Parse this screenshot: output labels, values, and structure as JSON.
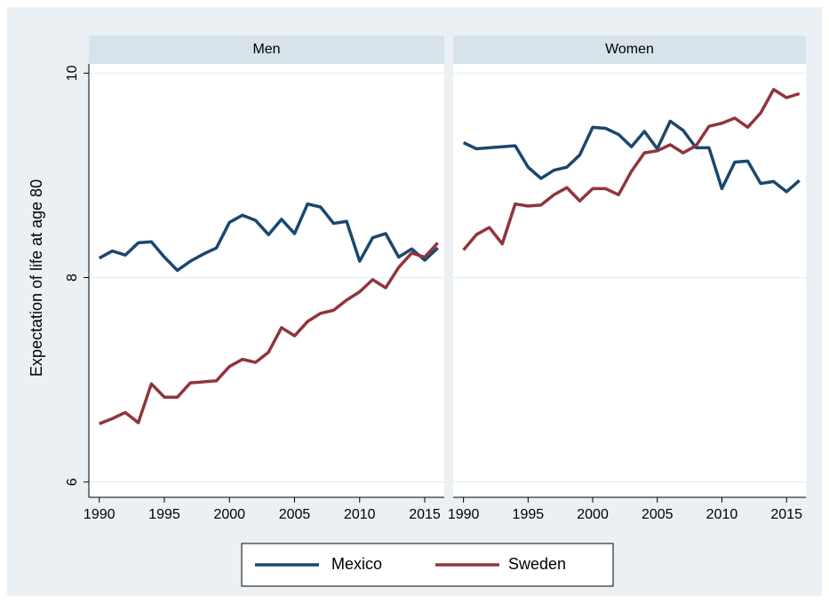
{
  "chart_data": {
    "type": "line",
    "ylabel": "Expectation of life at age 80",
    "x": [
      1990,
      1991,
      1992,
      1993,
      1994,
      1995,
      1996,
      1997,
      1998,
      1999,
      2000,
      2001,
      2002,
      2003,
      2004,
      2005,
      2006,
      2007,
      2008,
      2009,
      2010,
      2011,
      2012,
      2013,
      2014,
      2015,
      2016
    ],
    "xlim": [
      1989.2,
      2016.5
    ],
    "xticks": [
      1990,
      1995,
      2000,
      2005,
      2010,
      2015
    ],
    "ylim": [
      5.85,
      10.09
    ],
    "yticks": [
      6,
      8,
      10
    ],
    "grid": true,
    "legend": "bottom",
    "series": [
      {
        "name": "Mexico",
        "color": "#1a476f"
      },
      {
        "name": "Sweden",
        "color": "#90353b"
      }
    ],
    "panels": [
      {
        "title": "Men",
        "series": [
          {
            "values": [
              8.19,
              8.26,
              8.22,
              8.34,
              8.35,
              8.2,
              8.07,
              8.16,
              8.23,
              8.29,
              8.54,
              8.61,
              8.56,
              8.42,
              8.57,
              8.43,
              8.72,
              8.69,
              8.53,
              8.55,
              8.16,
              8.39,
              8.43,
              8.2,
              8.28,
              8.17,
              8.29
            ]
          },
          {
            "values": [
              6.57,
              6.62,
              6.68,
              6.58,
              6.96,
              6.83,
              6.83,
              6.97,
              6.98,
              6.99,
              7.13,
              7.2,
              7.17,
              7.27,
              7.51,
              7.43,
              7.57,
              7.65,
              7.68,
              7.78,
              7.86,
              7.98,
              7.9,
              8.1,
              8.24,
              8.2,
              8.34
            ]
          }
        ]
      },
      {
        "title": "Women",
        "series": [
          {
            "values": [
              9.32,
              9.26,
              9.27,
              9.28,
              9.29,
              9.08,
              8.97,
              9.05,
              9.08,
              9.2,
              9.47,
              9.46,
              9.4,
              9.28,
              9.43,
              9.26,
              9.53,
              9.44,
              9.27,
              9.27,
              8.87,
              9.13,
              9.14,
              8.92,
              8.94,
              8.84,
              8.95
            ]
          },
          {
            "values": [
              8.27,
              8.42,
              8.49,
              8.33,
              8.72,
              8.7,
              8.71,
              8.81,
              8.88,
              8.75,
              8.87,
              8.87,
              8.81,
              9.04,
              9.22,
              9.24,
              9.3,
              9.22,
              9.29,
              9.48,
              9.51,
              9.56,
              9.47,
              9.61,
              9.84,
              9.76,
              9.8
            ]
          }
        ]
      }
    ]
  }
}
